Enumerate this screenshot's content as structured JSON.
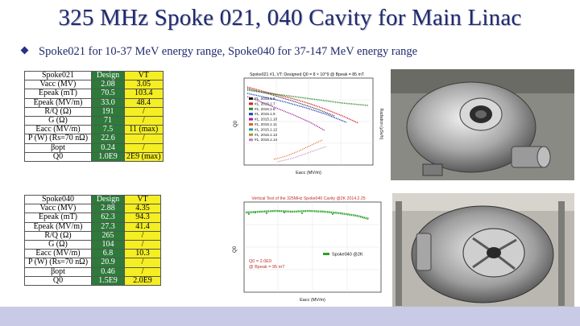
{
  "title": "325 MHz Spoke 021, 040 Cavity for Main Linac",
  "subtitle": "Spoke021 for 10-37 MeV energy range, Spoke040 for 37-147 MeV energy range",
  "table1": {
    "headers": [
      "Spoke021",
      "Design",
      "VT"
    ],
    "rows": [
      {
        "label": "Vacc (MV)",
        "design": "2.08",
        "vt": "3.05"
      },
      {
        "label": "Epeak (mT)",
        "design": "70.5",
        "vt": "103.4"
      },
      {
        "label": "Epeak (MV/m)",
        "design": "33.0",
        "vt": "48.4"
      },
      {
        "label": "R/Q (Ω)",
        "design": "191",
        "vt": "/"
      },
      {
        "label": "G (Ω)",
        "design": "71",
        "vt": "/"
      },
      {
        "label": "Eacc (MV/m)",
        "design": "7.5",
        "vt": "11 (max)"
      },
      {
        "label": "P (W) (Rs=70 nΩ)",
        "design": "22.6",
        "vt": "/"
      },
      {
        "label": "βopt",
        "design": "0.24",
        "vt": "/"
      },
      {
        "label": "Q0",
        "design": "1.0E9",
        "vt": "2E9 (max)"
      }
    ]
  },
  "table2": {
    "headers": [
      "Spoke040",
      "Design",
      "VT"
    ],
    "rows": [
      {
        "label": "Vacc (MV)",
        "design": "2.88",
        "vt": "4.35"
      },
      {
        "label": "Epeak (mT)",
        "design": "62.3",
        "vt": "94.3"
      },
      {
        "label": "Epeak (MV/m)",
        "design": "27.3",
        "vt": "41.4"
      },
      {
        "label": "R/Q (Ω)",
        "design": "265",
        "vt": "/"
      },
      {
        "label": "G (Ω)",
        "design": "104",
        "vt": "/"
      },
      {
        "label": "Eacc (MV/m)",
        "design": "6.8",
        "vt": "10.3"
      },
      {
        "label": "P (W) (Rs=70 nΩ)",
        "design": "20.9",
        "vt": "/"
      },
      {
        "label": "βopt",
        "design": "0.46",
        "vt": "/"
      },
      {
        "label": "Q0",
        "design": "1.5E9",
        "vt": "2.0E9"
      }
    ]
  },
  "plot1": {
    "title": "Spoke021 #1, VT: Designed Q0 = 8 × 10^9 @ Bpeak = 85 mT",
    "ylabel": "Q0",
    "y2label": "Radiation (µSv/h)",
    "xlabel": "Eacc (MV/m)",
    "legend": [
      "#1, 2015.1.6",
      "#1, 2015.1.7",
      "#1, 2015.1.8",
      "#1, 2015.1.9",
      "#1, 2015.1.10",
      "#1, 2015.1.11",
      "#1, 2015.1.12",
      "#1, 2015.1.13",
      "#1, 2015.1.14"
    ],
    "series_colors": [
      "#1a1a1a",
      "#d62020",
      "#2b8a2b",
      "#2040c0",
      "#a020a0",
      "#e06020",
      "#20a0a0",
      "#a0a020",
      "#c080c0"
    ]
  },
  "plot2": {
    "title": "Vertical Test of the 325MHz Spoke040 Cavity @2K  2014.2.25",
    "ylabel": "Q0",
    "xlabel": "Eacc (MV/m)",
    "legend": "Spoke040 @2K",
    "annotation_line1": "Q0 = 2.0E9",
    "annotation_line2": "@ Bpeak = 95 mT",
    "series_color": "#2ca02c"
  },
  "photo1": {
    "label": "spoke021-cavity-photo"
  },
  "photo2": {
    "label": "spoke040-cavity-photo"
  }
}
